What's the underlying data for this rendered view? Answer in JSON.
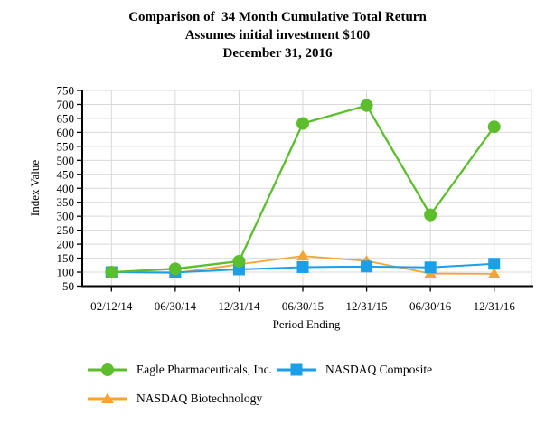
{
  "title": {
    "line1": "Comparison of  34 Month Cumulative Total Return",
    "line2": "Assumes initial investment $100",
    "line3": "December 31, 2016"
  },
  "chart_data": {
    "type": "line",
    "title": "Comparison of 34 Month Cumulative Total Return",
    "xlabel": "Period Ending",
    "ylabel": "Index Value",
    "categories": [
      "02/12/14",
      "06/30/14",
      "12/31/14",
      "06/30/15",
      "12/31/15",
      "06/30/16",
      "12/31/16"
    ],
    "y_ticks": [
      50,
      100,
      150,
      200,
      250,
      300,
      350,
      400,
      450,
      500,
      550,
      600,
      650,
      700,
      750
    ],
    "ylim": [
      50,
      750
    ],
    "grid": true,
    "legend_position": "bottom",
    "series": [
      {
        "name": "Eagle Pharmaceuticals, Inc.",
        "color": "#5cbe2d",
        "marker": "circle",
        "values": [
          100,
          112,
          139,
          632,
          696,
          305,
          620
        ]
      },
      {
        "name": "NASDAQ Composite",
        "color": "#1b9fe8",
        "marker": "square",
        "values": [
          100,
          99,
          110,
          118,
          120,
          117,
          130
        ]
      },
      {
        "name": "NASDAQ Biotechnology",
        "color": "#f7a434",
        "marker": "triangle",
        "values": [
          100,
          97,
          128,
          158,
          140,
          95,
          94
        ]
      }
    ],
    "colors": {
      "grid": "#d9d9d9",
      "axis": "#000000",
      "text": "#000000"
    }
  }
}
